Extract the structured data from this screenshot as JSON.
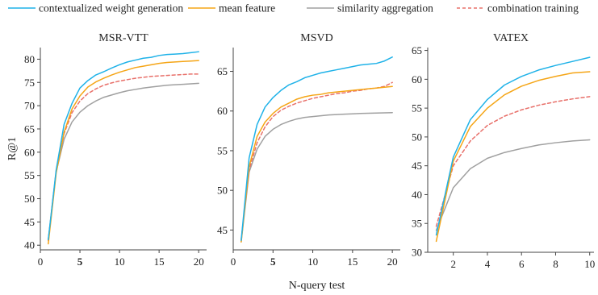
{
  "chart_data": [
    {
      "type": "line",
      "title": "MSR-VTT",
      "xlabel": "",
      "ylabel": "R@1",
      "xlim": [
        0,
        21
      ],
      "ylim": [
        39,
        82.5
      ],
      "xticks": [
        0,
        5,
        10,
        15,
        20
      ],
      "xtick_labels": [
        "0",
        "5",
        "10",
        "15",
        "20"
      ],
      "bold_xticks": [
        "5"
      ],
      "yticks": [
        40,
        45,
        50,
        55,
        60,
        65,
        70,
        75,
        80
      ],
      "ytick_labels": [
        "40",
        "45",
        "50",
        "55",
        "60",
        "65",
        "70",
        "75",
        "80"
      ],
      "x": [
        1,
        2,
        3,
        4,
        5,
        6,
        7,
        8,
        9,
        10,
        11,
        12,
        13,
        14,
        15,
        16,
        17,
        18,
        19,
        20
      ],
      "series": [
        {
          "name": "contextualized weight generation",
          "values": [
            41.2,
            56.2,
            66.0,
            70.5,
            73.8,
            75.4,
            76.6,
            77.3,
            78.1,
            78.8,
            79.4,
            79.8,
            80.2,
            80.4,
            80.8,
            81.0,
            81.1,
            81.2,
            81.4,
            81.6
          ]
        },
        {
          "name": "mean feature",
          "values": [
            40.3,
            55.5,
            64.3,
            69.3,
            72.1,
            74.0,
            75.1,
            75.9,
            76.6,
            77.2,
            77.7,
            78.2,
            78.5,
            78.8,
            79.1,
            79.3,
            79.4,
            79.5,
            79.6,
            79.7
          ]
        },
        {
          "name": "similarity aggregation",
          "values": [
            41.2,
            55.8,
            62.8,
            66.5,
            68.6,
            70.0,
            71.0,
            71.8,
            72.3,
            72.8,
            73.2,
            73.5,
            73.8,
            74.0,
            74.2,
            74.4,
            74.5,
            74.6,
            74.7,
            74.8
          ]
        },
        {
          "name": "combination training",
          "values": [
            41.0,
            56.0,
            64.0,
            68.5,
            71.0,
            72.6,
            73.6,
            74.4,
            74.9,
            75.3,
            75.6,
            75.9,
            76.1,
            76.3,
            76.4,
            76.5,
            76.6,
            76.7,
            76.8,
            76.8
          ]
        }
      ]
    },
    {
      "type": "line",
      "title": "MSVD",
      "xlabel": "N-query test",
      "ylabel": "",
      "xlim": [
        0,
        21
      ],
      "ylim": [
        42.5,
        68
      ],
      "xticks": [
        0,
        5,
        10,
        15,
        20
      ],
      "xtick_labels": [
        "0",
        "5",
        "10",
        "15",
        "20"
      ],
      "bold_xticks": [
        "5"
      ],
      "yticks": [
        45,
        50,
        55,
        60,
        65
      ],
      "ytick_labels": [
        "45",
        "50",
        "55",
        "60",
        "65"
      ],
      "x": [
        1,
        2,
        3,
        4,
        5,
        6,
        7,
        8,
        9,
        10,
        11,
        12,
        13,
        14,
        15,
        16,
        17,
        18,
        19,
        20
      ],
      "series": [
        {
          "name": "contextualized weight generation",
          "values": [
            43.7,
            54.1,
            58.3,
            60.5,
            61.7,
            62.6,
            63.3,
            63.7,
            64.2,
            64.5,
            64.8,
            65.0,
            65.2,
            65.4,
            65.6,
            65.8,
            65.9,
            66.0,
            66.3,
            66.8
          ]
        },
        {
          "name": "mean feature",
          "values": [
            43.5,
            53.0,
            56.8,
            58.6,
            59.7,
            60.5,
            61.0,
            61.5,
            61.8,
            62.0,
            62.1,
            62.3,
            62.4,
            62.5,
            62.6,
            62.7,
            62.8,
            62.9,
            63.0,
            63.1
          ]
        },
        {
          "name": "similarity aggregation",
          "values": [
            43.5,
            52.3,
            55.2,
            56.8,
            57.7,
            58.3,
            58.7,
            59.0,
            59.2,
            59.3,
            59.4,
            59.5,
            59.55,
            59.6,
            59.65,
            59.7,
            59.72,
            59.75,
            59.77,
            59.8
          ]
        },
        {
          "name": "combination training",
          "values": [
            43.8,
            52.6,
            56.0,
            58.0,
            59.3,
            60.1,
            60.6,
            61.0,
            61.3,
            61.6,
            61.8,
            62.0,
            62.2,
            62.3,
            62.5,
            62.6,
            62.8,
            62.9,
            63.1,
            63.6
          ]
        }
      ]
    },
    {
      "type": "line",
      "title": "VATEX",
      "xlabel": "",
      "ylabel": "",
      "xlim": [
        0.5,
        10.25
      ],
      "ylim": [
        30,
        65.5
      ],
      "xticks": [
        2,
        4,
        6,
        8,
        10
      ],
      "xtick_labels": [
        "2",
        "4",
        "6",
        "8",
        "10"
      ],
      "bold_xticks": [],
      "yticks": [
        30,
        35,
        40,
        45,
        50,
        55,
        60,
        65
      ],
      "ytick_labels": [
        "30",
        "35",
        "40",
        "45",
        "50",
        "55",
        "60",
        "65"
      ],
      "x": [
        1,
        2,
        3,
        4,
        5,
        6,
        7,
        8,
        9,
        10
      ],
      "series": [
        {
          "name": "contextualized weight generation",
          "values": [
            33.0,
            46.5,
            53.0,
            56.5,
            59.0,
            60.5,
            61.6,
            62.4,
            63.1,
            63.8
          ]
        },
        {
          "name": "mean feature",
          "values": [
            31.9,
            45.8,
            51.8,
            55.0,
            57.3,
            58.8,
            59.8,
            60.5,
            61.1,
            61.3
          ]
        },
        {
          "name": "similarity aggregation",
          "values": [
            33.8,
            41.2,
            44.5,
            46.3,
            47.3,
            48.0,
            48.6,
            49.0,
            49.3,
            49.5
          ]
        },
        {
          "name": "combination training",
          "values": [
            34.5,
            45.0,
            49.3,
            52.0,
            53.6,
            54.7,
            55.5,
            56.1,
            56.6,
            57.0
          ]
        }
      ]
    }
  ],
  "legend": {
    "position": "top",
    "items": [
      {
        "label": "contextualized weight generation",
        "color": "#1fb2e8",
        "dash": "solid"
      },
      {
        "label": "mean feature",
        "color": "#f5a516",
        "dash": "solid"
      },
      {
        "label": "similarity aggregation",
        "color": "#a0a0a0",
        "dash": "solid"
      },
      {
        "label": "combination training",
        "color": "#e8706a",
        "dash": "dashed"
      }
    ]
  },
  "colors": {
    "contextualized weight generation": "#1fb2e8",
    "mean feature": "#f5a516",
    "similarity aggregation": "#a0a0a0",
    "combination training": "#e8706a",
    "axis": "#444444"
  }
}
